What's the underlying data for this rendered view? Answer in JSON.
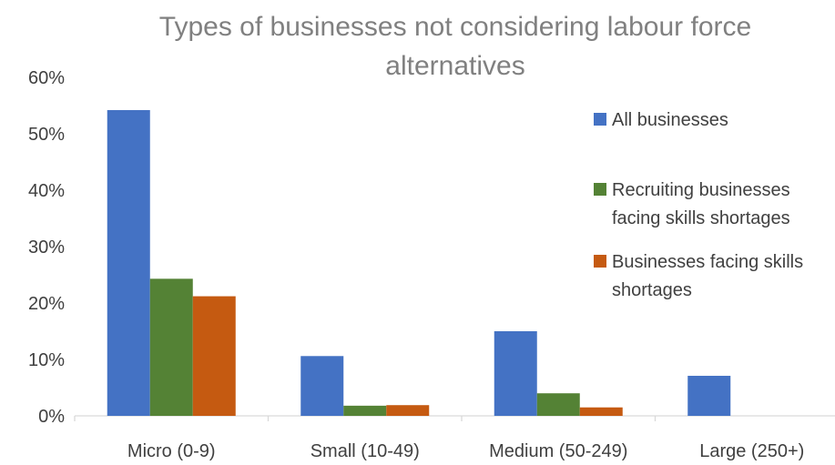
{
  "chart_data": {
    "type": "bar",
    "title": "Types of businesses not considering labour force alternatives",
    "categories": [
      "Micro (0-9)",
      "Small (10-49)",
      "Medium (50-249)",
      "Large (250+)"
    ],
    "series": [
      {
        "name": "All businesses",
        "values": [
          54.2,
          10.6,
          15.0,
          7.1
        ]
      },
      {
        "name": "Recruiting businesses facing skills shortages",
        "values": [
          24.3,
          1.8,
          4.0,
          0
        ]
      },
      {
        "name": "Businesses facing skills shortages",
        "values": [
          21.2,
          1.9,
          1.5,
          0
        ]
      }
    ],
    "y_ticks": [
      "0%",
      "10%",
      "20%",
      "30%",
      "40%",
      "50%",
      "60%"
    ],
    "ylim": [
      0,
      60
    ],
    "xlabel": "",
    "ylabel": "",
    "legend_position": "right",
    "grid": false,
    "colors": [
      "#4472C4",
      "#548235",
      "#C55A11"
    ],
    "legend_lines": [
      [
        "All businesses"
      ],
      [
        "Recruiting businesses",
        "facing skills shortages"
      ],
      [
        "Businesses facing skills",
        "shortages"
      ]
    ]
  }
}
